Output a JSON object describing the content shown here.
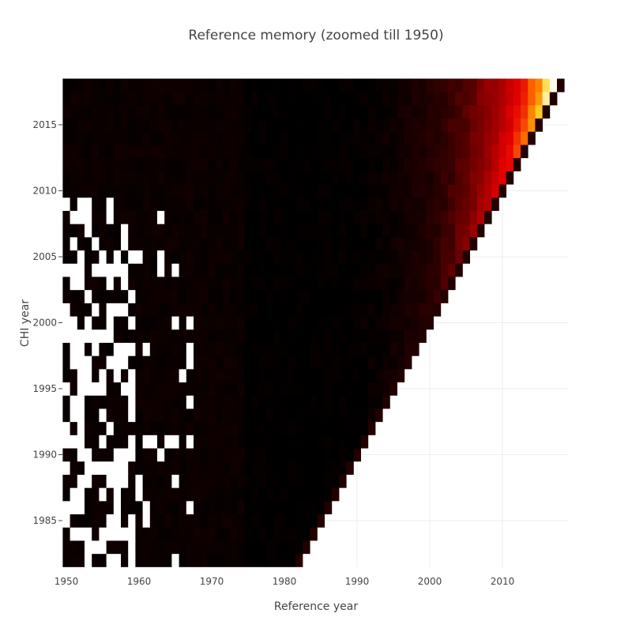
{
  "chart_data": {
    "type": "heatmap",
    "title": "Reference memory (zoomed till 1950)",
    "xlabel": "Reference year",
    "ylabel": "CHI year",
    "xlim": [
      1950,
      2018
    ],
    "ylim": [
      1982,
      2018
    ],
    "x_ticks": [
      1950,
      1960,
      1970,
      1980,
      1990,
      2000,
      2010
    ],
    "y_ticks": [
      1985,
      1990,
      1995,
      2000,
      2005,
      2010,
      2015
    ],
    "grid": true,
    "colorscale": "hot (black - red - yellow - white)",
    "colors": [
      "#000000",
      "#2a0000",
      "#a00000",
      "#e60000",
      "#ff8000",
      "#ffd400",
      "#fff3b0",
      "#ffffff"
    ],
    "cell_rule": "value = 0 for reference year later than CHI year (blank); intensity rises toward recent reference years; some early cells empty (white)"
  }
}
